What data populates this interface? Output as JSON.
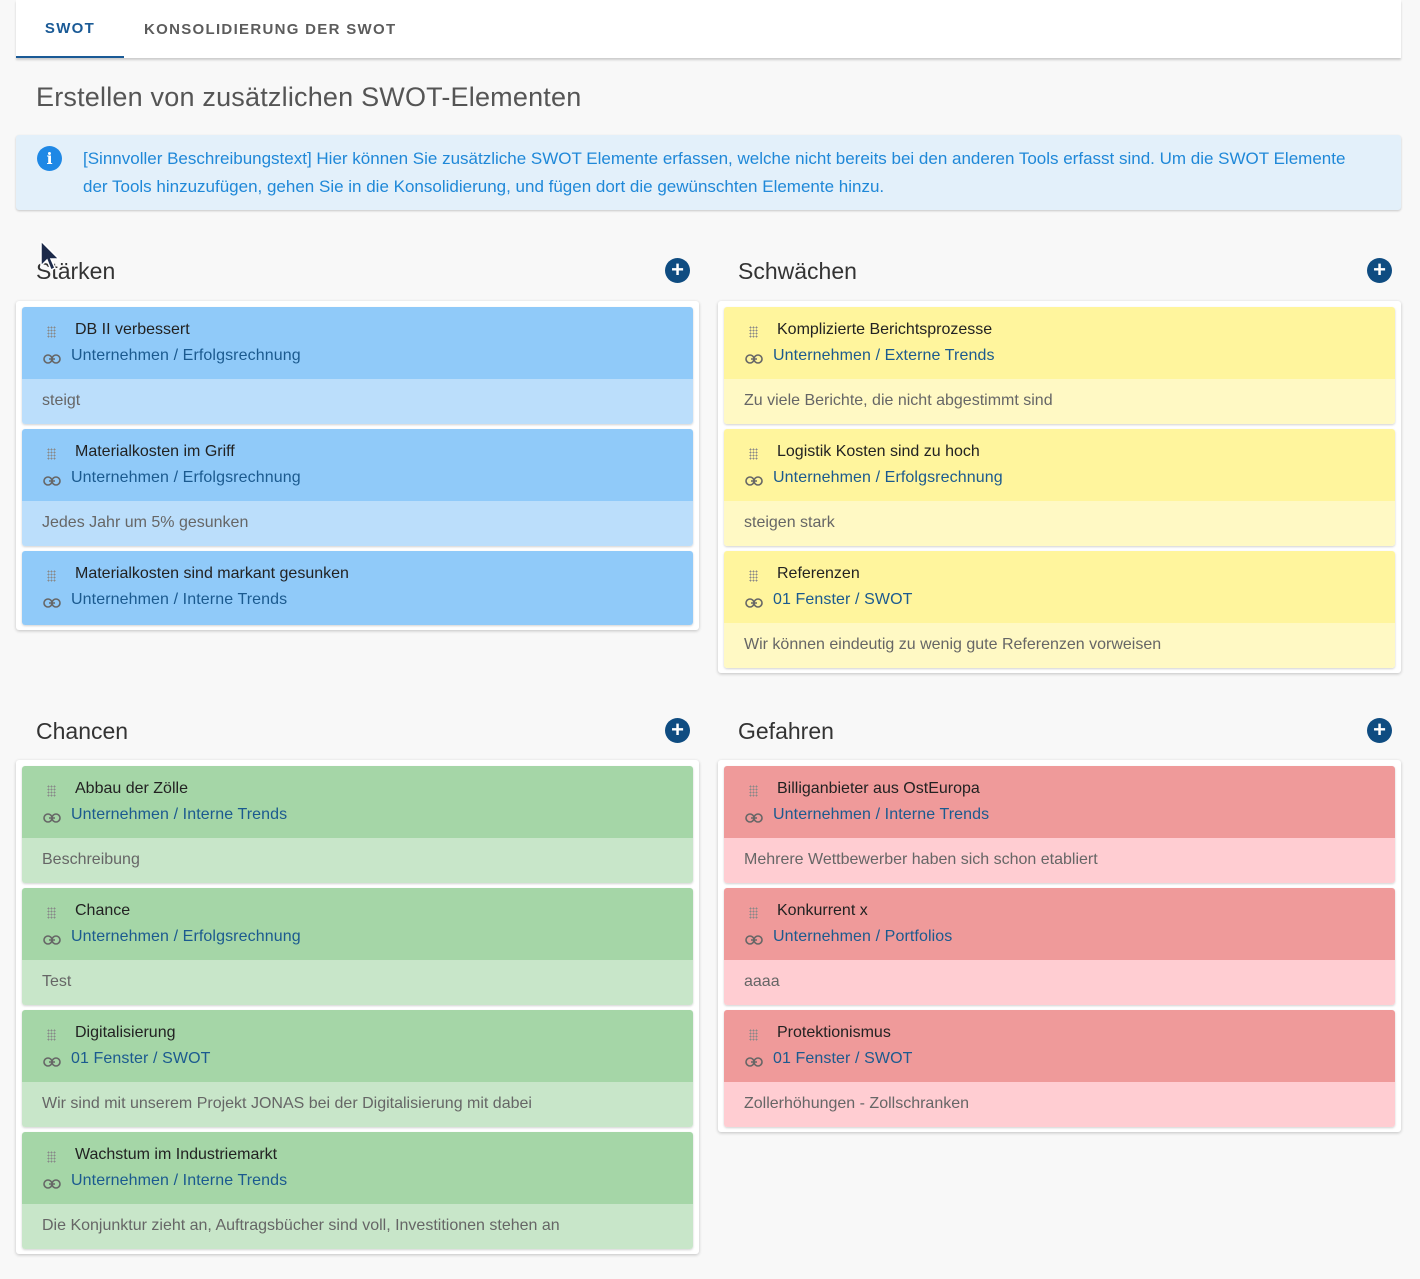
{
  "tabs": [
    {
      "label": "SWOT",
      "active": true
    },
    {
      "label": "KONSOLIDIERUNG DER SWOT",
      "active": false
    }
  ],
  "page_title": "Erstellen von zusätzlichen SWOT-Elementen",
  "info_text": "[Sinnvoller Beschreibungstext] Hier können Sie zusätzliche SWOT Elemente erfassen, welche nicht bereits bei den anderen Tools erfasst sind. Um die SWOT Elemente der Tools hinzuzufügen, gehen Sie in die Konsolidierung, und fügen dort die gewünschten Elemente hinzu.",
  "colors": {
    "strengths": "#90caf9",
    "weaknesses": "#fff59d",
    "opportunities": "#a5d6a7",
    "threats": "#ef9a9a",
    "add_button": "#0f4c81"
  },
  "sections": {
    "strengths": {
      "title": "Stärken",
      "items": [
        {
          "title": "DB II verbessert",
          "path": "Unternehmen / Erfolgsrechnung",
          "description": "steigt"
        },
        {
          "title": "Materialkosten im Griff",
          "path": "Unternehmen / Erfolgsrechnung",
          "description": "Jedes Jahr um 5% gesunken"
        },
        {
          "title": "Materialkosten sind markant gesunken",
          "path": "Unternehmen / Interne Trends",
          "description": ""
        }
      ]
    },
    "weaknesses": {
      "title": "Schwächen",
      "items": [
        {
          "title": "Komplizierte Berichtsprozesse",
          "path": "Unternehmen / Externe Trends",
          "description": "Zu viele Berichte, die nicht abgestimmt sind"
        },
        {
          "title": "Logistik Kosten sind zu hoch",
          "path": "Unternehmen / Erfolgsrechnung",
          "description": "steigen stark"
        },
        {
          "title": "Referenzen",
          "path": "01 Fenster / SWOT",
          "description": "Wir können eindeutig zu wenig gute Referenzen vorweisen"
        }
      ]
    },
    "opportunities": {
      "title": "Chancen",
      "items": [
        {
          "title": "Abbau der Zölle",
          "path": "Unternehmen / Interne Trends",
          "description": "Beschreibung"
        },
        {
          "title": "Chance",
          "path": "Unternehmen / Erfolgsrechnung",
          "description": "Test"
        },
        {
          "title": "Digitalisierung",
          "path": "01 Fenster / SWOT",
          "description": "Wir sind mit unserem Projekt JONAS bei der Digitalisierung mit dabei"
        },
        {
          "title": "Wachstum im Industriemarkt",
          "path": "Unternehmen / Interne Trends",
          "description": "Die Konjunktur zieht an, Auftragsbücher sind voll, Investitionen stehen an"
        }
      ]
    },
    "threats": {
      "title": "Gefahren",
      "items": [
        {
          "title": "Billiganbieter aus OstEuropa",
          "path": "Unternehmen / Interne Trends",
          "description": "Mehrere Wettbewerber haben sich schon etabliert"
        },
        {
          "title": "Konkurrent x",
          "path": "Unternehmen / Portfolios",
          "description": "aaaa"
        },
        {
          "title": "Protektionismus",
          "path": "01 Fenster / SWOT",
          "description": "Zollerhöhungen - Zollschranken"
        }
      ]
    }
  }
}
